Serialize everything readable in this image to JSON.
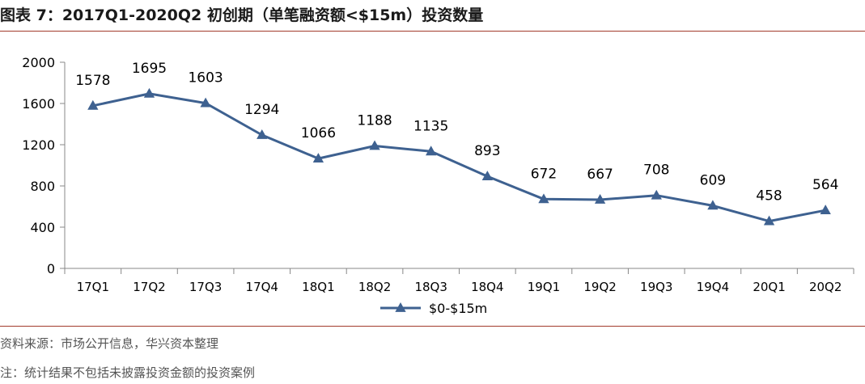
{
  "header": {
    "title": "图表 7：2017Q1-2020Q2 初创期（单笔融资额<$15m）投资数量"
  },
  "footer": {
    "source": "资料来源：市场公开信息，华兴资本整理",
    "note": "注：统计结果不包括未披露投资金额的投资案例"
  },
  "colors": {
    "series": "#3e6190",
    "rule": "#a23b2c"
  },
  "chart_data": {
    "type": "line",
    "categories": [
      "17Q1",
      "17Q2",
      "17Q3",
      "17Q4",
      "18Q1",
      "18Q2",
      "18Q3",
      "18Q4",
      "19Q1",
      "19Q2",
      "19Q3",
      "19Q4",
      "20Q1",
      "20Q2"
    ],
    "series": [
      {
        "name": "$0-$15m",
        "values": [
          1578,
          1695,
          1603,
          1294,
          1066,
          1188,
          1135,
          893,
          672,
          667,
          708,
          609,
          458,
          564
        ],
        "marker": "triangle"
      }
    ],
    "yticks": [
      0,
      400,
      800,
      1200,
      1600,
      2000
    ],
    "ylim": [
      0,
      2000
    ],
    "grid": false,
    "data_labels": true,
    "legend": "bottom"
  }
}
